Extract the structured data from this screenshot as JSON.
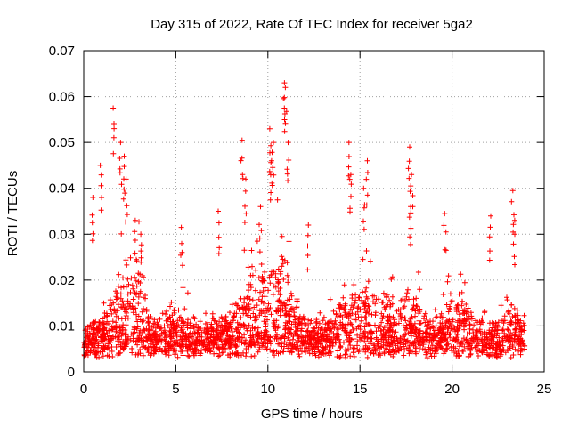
{
  "chart_data": {
    "type": "scatter",
    "title": "Day 315 of 2022, Rate Of TEC Index for receiver 5ga2",
    "xlabel": "GPS time / hours",
    "ylabel": "ROTI / TECUs",
    "xlim": [
      0,
      25
    ],
    "ylim": [
      0,
      0.07
    ],
    "xticks": [
      0,
      5,
      10,
      15,
      20,
      25
    ],
    "yticks": [
      0,
      0.01,
      0.02,
      0.03,
      0.04,
      0.05,
      0.06,
      0.07
    ],
    "xtick_labels": [
      "0",
      "5",
      "10",
      "15",
      "20",
      "25"
    ],
    "ytick_labels": [
      "0",
      "0.01",
      "0.02",
      "0.03",
      "0.04",
      "0.05",
      "0.06",
      "0.07"
    ],
    "grid": true,
    "marker": "+",
    "series_color": "#ff0000",
    "series": [
      {
        "name": "ROTI",
        "note": "dense cloud of ~thousands of points between 0.003 and 0.02 across 0-24 h; notable peaks listed",
        "peaks": [
          {
            "x": 0.5,
            "y": 0.038
          },
          {
            "x": 0.9,
            "y": 0.045
          },
          {
            "x": 1.6,
            "y": 0.0575
          },
          {
            "x": 2.0,
            "y": 0.05
          },
          {
            "x": 2.2,
            "y": 0.047
          },
          {
            "x": 2.3,
            "y": 0.042
          },
          {
            "x": 2.8,
            "y": 0.033
          },
          {
            "x": 3.1,
            "y": 0.03
          },
          {
            "x": 5.3,
            "y": 0.0315
          },
          {
            "x": 7.3,
            "y": 0.035
          },
          {
            "x": 8.6,
            "y": 0.0505
          },
          {
            "x": 8.8,
            "y": 0.042
          },
          {
            "x": 9.6,
            "y": 0.036
          },
          {
            "x": 10.1,
            "y": 0.053
          },
          {
            "x": 10.2,
            "y": 0.046
          },
          {
            "x": 10.3,
            "y": 0.05
          },
          {
            "x": 10.9,
            "y": 0.063
          },
          {
            "x": 10.95,
            "y": 0.062
          },
          {
            "x": 11.1,
            "y": 0.05
          },
          {
            "x": 12.2,
            "y": 0.032
          },
          {
            "x": 14.4,
            "y": 0.05
          },
          {
            "x": 14.5,
            "y": 0.043
          },
          {
            "x": 15.4,
            "y": 0.046
          },
          {
            "x": 15.2,
            "y": 0.04
          },
          {
            "x": 17.7,
            "y": 0.049
          },
          {
            "x": 17.8,
            "y": 0.043
          },
          {
            "x": 17.75,
            "y": 0.036
          },
          {
            "x": 19.6,
            "y": 0.0345
          },
          {
            "x": 22.1,
            "y": 0.034
          },
          {
            "x": 23.3,
            "y": 0.0395
          },
          {
            "x": 23.4,
            "y": 0.033
          }
        ]
      }
    ]
  }
}
